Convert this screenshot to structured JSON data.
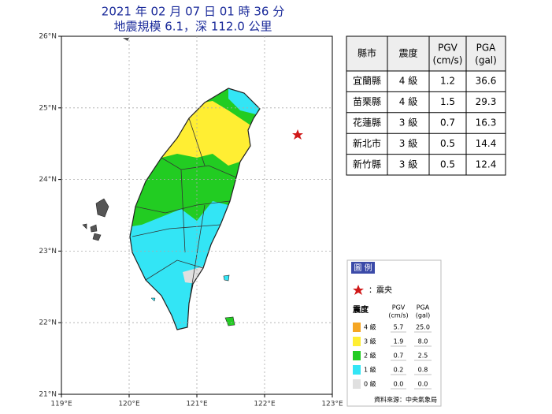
{
  "header": {
    "title": "2021 年 02 月 07 日 01 時 36 分",
    "subtitle": "地震規模 6.1，深 112.0 公里"
  },
  "map": {
    "lat_labels": [
      "26°N",
      "25°N",
      "24°N",
      "23°N",
      "22°N",
      "21°N"
    ],
    "lon_labels": [
      "119°E",
      "120°E",
      "121°E",
      "122°E",
      "123°E"
    ]
  },
  "table": {
    "columns": [
      {
        "label": "縣市"
      },
      {
        "label": "震度"
      },
      {
        "label": "PGV",
        "unit": "(cm/s)"
      },
      {
        "label": "PGA",
        "unit": "(gal)"
      }
    ],
    "rows": [
      [
        "宜蘭縣",
        "4 級",
        "1.2",
        "36.6"
      ],
      [
        "苗栗縣",
        "4 級",
        "1.5",
        "29.3"
      ],
      [
        "花蓮縣",
        "3 級",
        "0.7",
        "16.3"
      ],
      [
        "新北市",
        "3 級",
        "0.5",
        "14.4"
      ],
      [
        "新竹縣",
        "3 級",
        "0.5",
        "12.4"
      ]
    ]
  },
  "legend": {
    "title": "圖 例",
    "epicenter": "：震央",
    "level_header": "震度",
    "pgv_header": {
      "label": "PGV",
      "unit": "(cm/s)"
    },
    "pga_header": {
      "label": "PGA",
      "unit": "(gal)"
    },
    "rows": [
      {
        "level": "4 級",
        "pgv": "5.7",
        "pga": "25.0",
        "color": "#f5a623"
      },
      {
        "level": "3 級",
        "pgv": "1.9",
        "pga": "8.0",
        "color": "#ffee33"
      },
      {
        "level": "2 級",
        "pgv": "0.7",
        "pga": "2.5",
        "color": "#22cc22"
      },
      {
        "level": "1 級",
        "pgv": "0.2",
        "pga": "0.8",
        "color": "#33e5f5"
      },
      {
        "level": "0 級",
        "pgv": "0.0",
        "pga": "0.0",
        "color": "#e0e0e0"
      }
    ],
    "source": "資料來源：中央氣象局"
  }
}
